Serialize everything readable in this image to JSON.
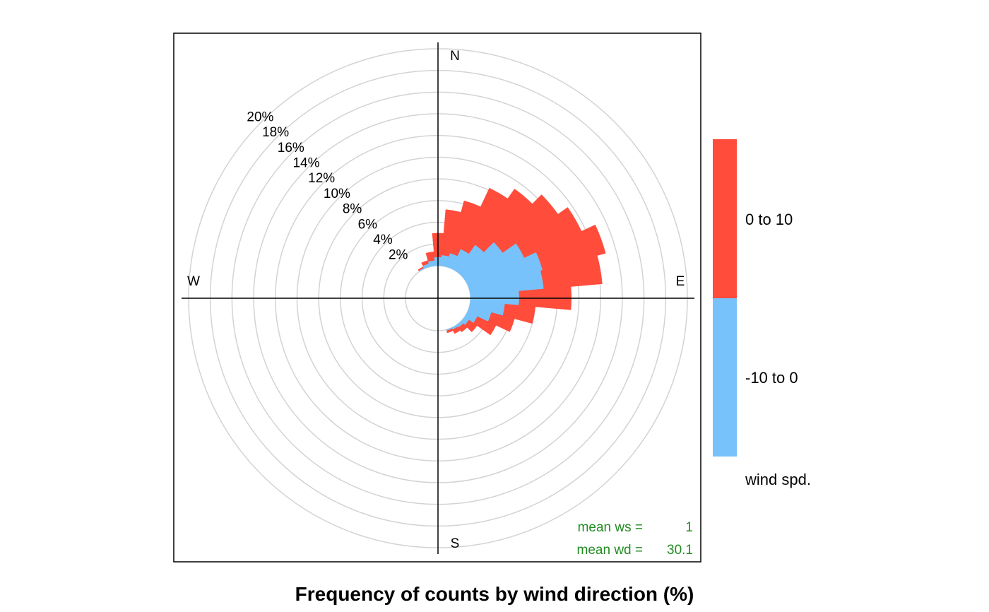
{
  "chart_data": {
    "type": "polar-bar",
    "title": "Frequency of counts by wind direction (%)",
    "compass": {
      "north": "N",
      "east": "E",
      "south": "S",
      "west": "W"
    },
    "ring_labels": [
      "2%",
      "4%",
      "6%",
      "8%",
      "10%",
      "12%",
      "14%",
      "16%",
      "18%",
      "20%"
    ],
    "ring_values": [
      2,
      4,
      6,
      8,
      10,
      12,
      14,
      16,
      18,
      20
    ],
    "offset_pct": 3,
    "grid": true,
    "direction_bin_deg": 10,
    "directions": [
      -30,
      -20,
      -10,
      0,
      10,
      20,
      30,
      40,
      50,
      60,
      70,
      80,
      90,
      100,
      110,
      120,
      130,
      140,
      150,
      160
    ],
    "series": [
      {
        "name": "-10 to 0",
        "values": [
          0.1,
          0.3,
          0.5,
          0.8,
          1.0,
          1.3,
          2.0,
          3.0,
          4.3,
          5.8,
          7.0,
          6.8,
          4.5,
          3.2,
          2.1,
          1.0,
          0.5,
          0.3,
          0.2,
          0.1
        ]
      },
      {
        "name": "0 to 10",
        "values": [
          0.1,
          0.3,
          0.8,
          2.2,
          4.2,
          5.0,
          6.2,
          6.3,
          6.2,
          5.8,
          6.0,
          5.4,
          4.8,
          2.8,
          2.2,
          1.9,
          0.9,
          0.5,
          0.4,
          0.2
        ]
      }
    ],
    "legend": {
      "position": "right",
      "title": "wind spd.",
      "entries": [
        {
          "label": "0 to 10",
          "color": "#FF4C3B"
        },
        {
          "label": "-10 to 0",
          "color": "#77C2FA"
        }
      ]
    },
    "annotations": [
      {
        "label": "mean ws =",
        "value": "1"
      },
      {
        "label": "mean wd =",
        "value": "30.1"
      }
    ],
    "annotation_color": "#228B22",
    "colors": {
      "low": "#77C2FA",
      "high": "#FF4C3B",
      "grid": "#D3D3D3",
      "axis": "#000000"
    }
  }
}
